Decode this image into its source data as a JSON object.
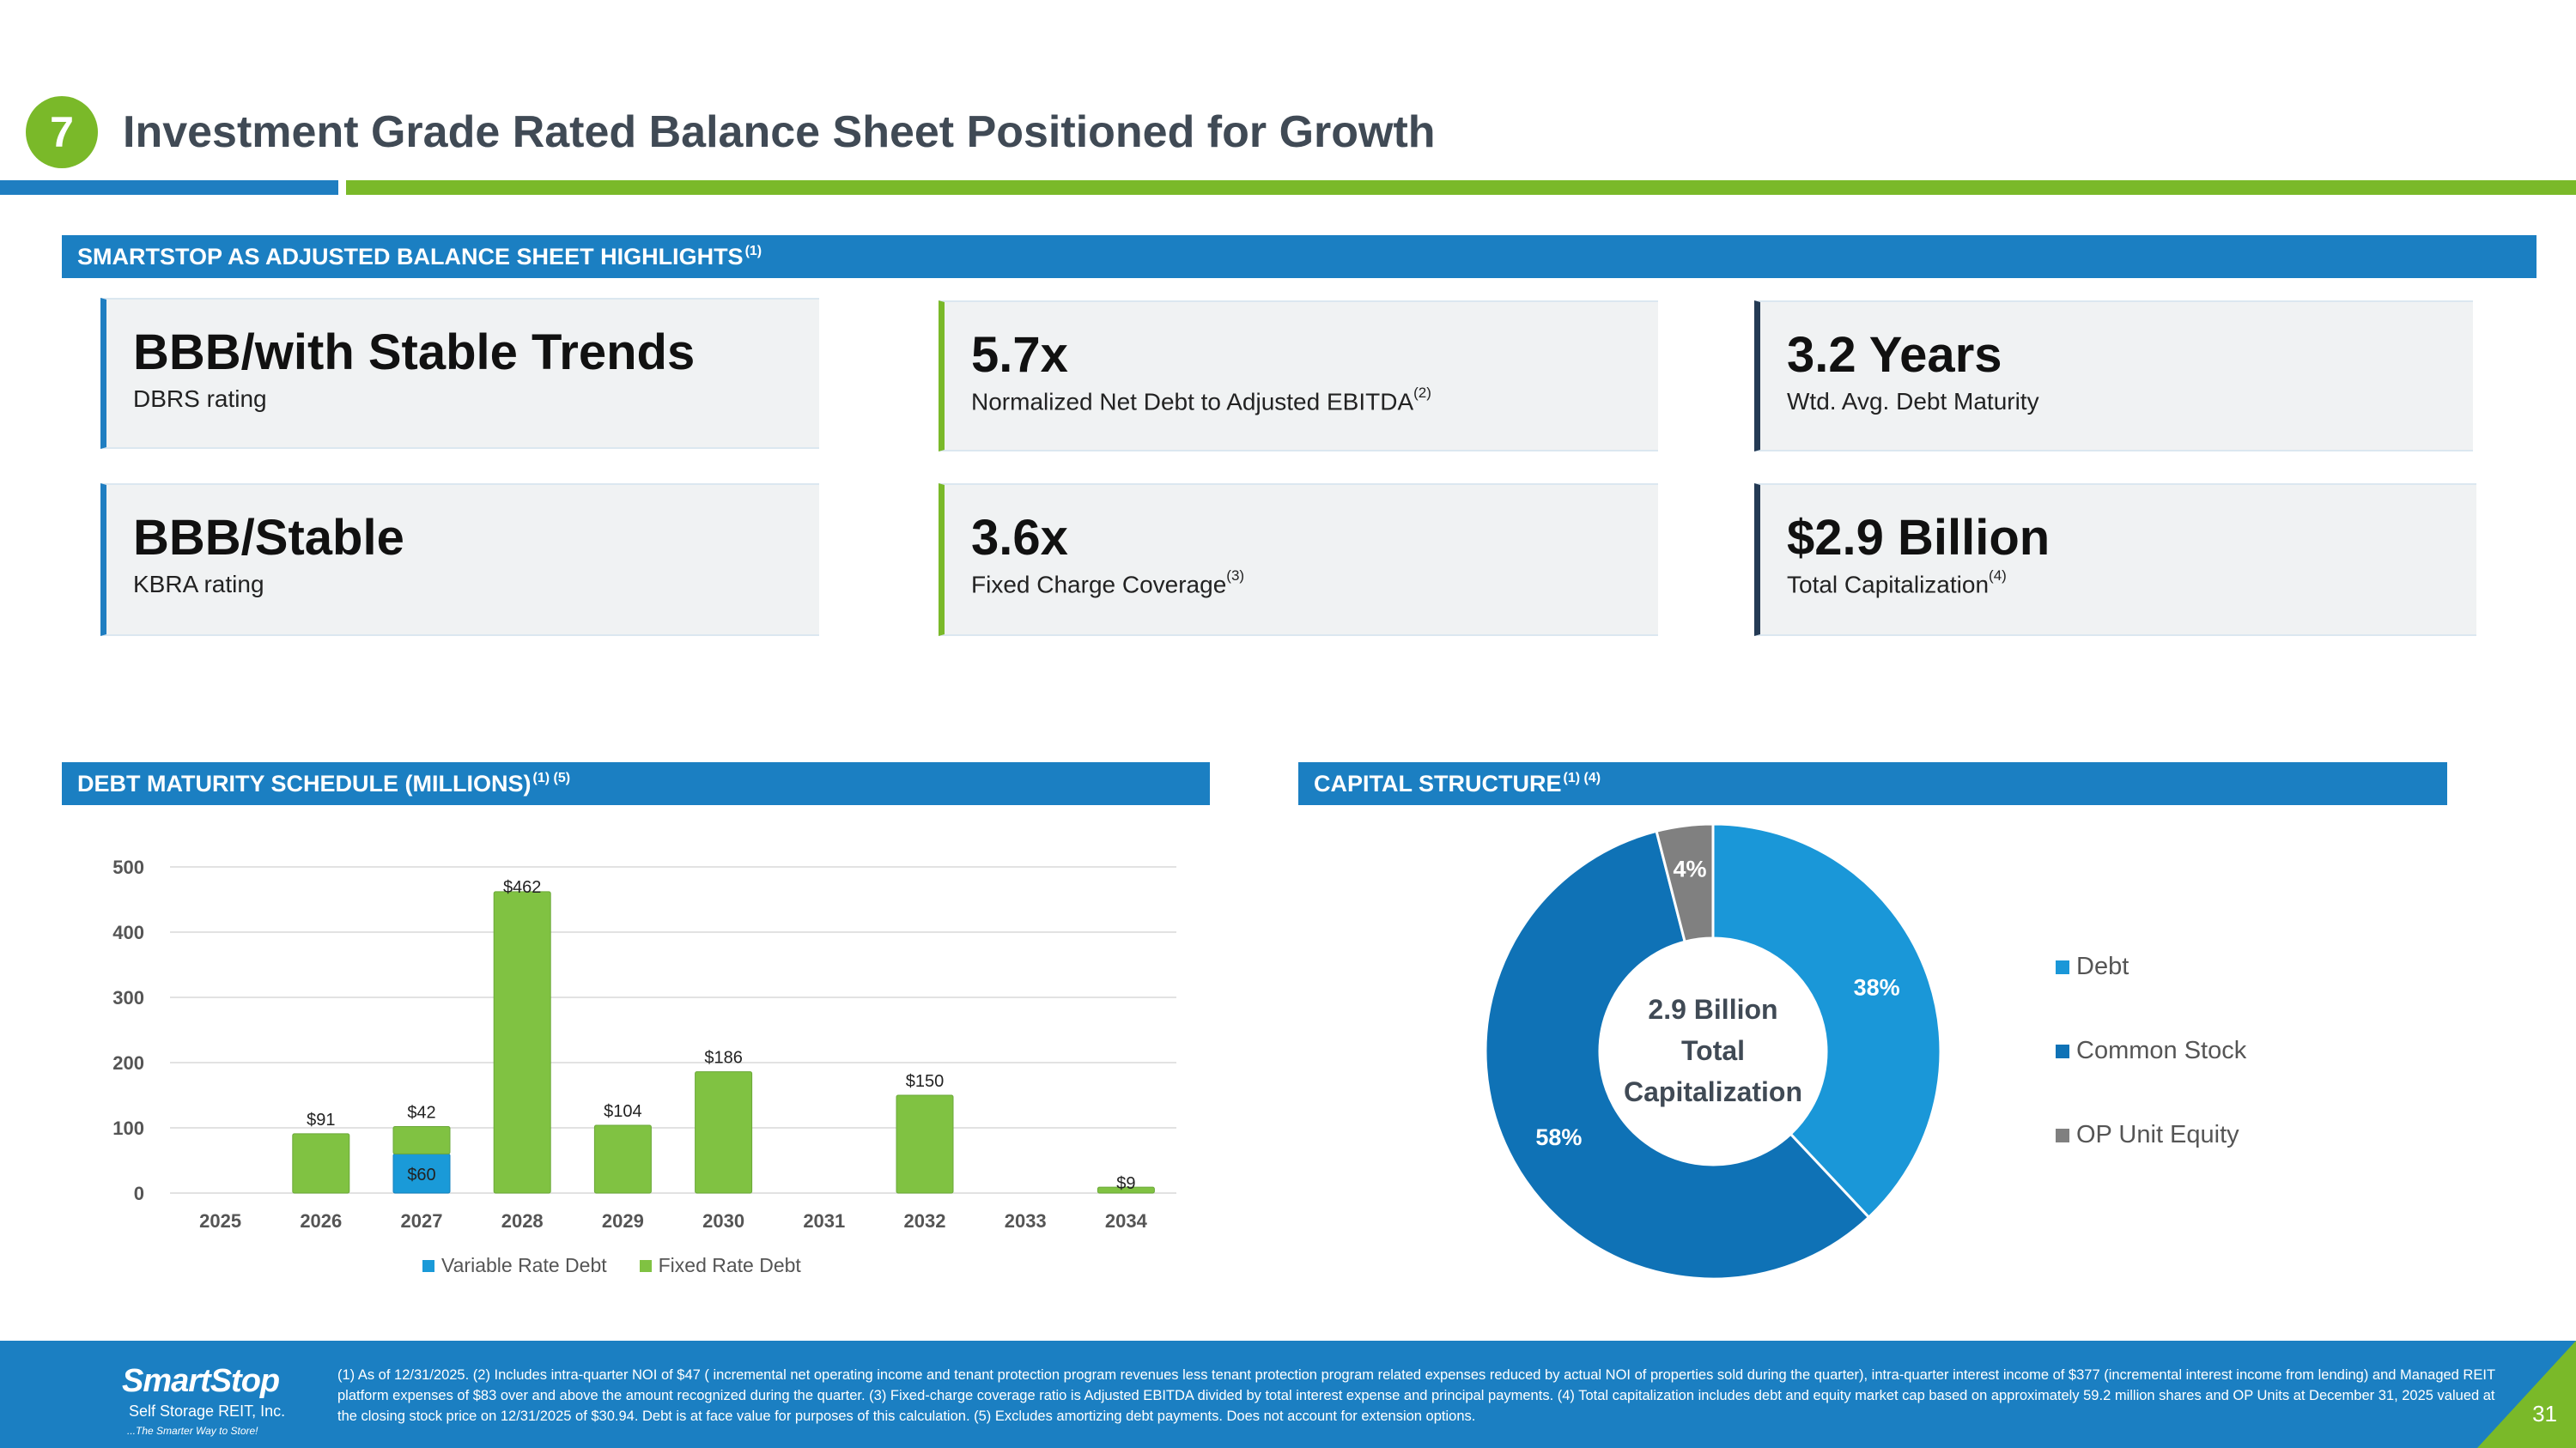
{
  "header": {
    "number": "7",
    "title": "Investment Grade Rated Balance Sheet Positioned for Growth"
  },
  "highlights": {
    "title": "SMARTSTOP AS ADJUSTED BALANCE SHEET HIGHLIGHTS",
    "title_note": "(1)",
    "cards": [
      {
        "value": "BBB/with Stable Trends",
        "label": "DBRS rating",
        "note": ""
      },
      {
        "value": "5.7x",
        "label": "Normalized Net Debt to Adjusted EBITDA",
        "note": "(2)"
      },
      {
        "value": "3.2 Years",
        "label": "Wtd. Avg. Debt Maturity",
        "note": ""
      },
      {
        "value": "BBB/Stable",
        "label": "KBRA rating",
        "note": ""
      },
      {
        "value": "3.6x",
        "label": "Fixed Charge Coverage",
        "note": "(3)"
      },
      {
        "value": "$2.9 Billion",
        "label": "Total Capitalization",
        "note": "(4)"
      }
    ]
  },
  "debt_section": {
    "title": "DEBT MATURITY SCHEDULE (MILLIONS)",
    "note": "(1) (5)"
  },
  "capital_section": {
    "title": "CAPITAL STRUCTURE",
    "note": "(1) (4)"
  },
  "colors": {
    "blue": "#1b7fc2",
    "green": "#7ab929",
    "variable": "#1a9ad8",
    "fixed": "#80c242",
    "debt": "#1a97d8",
    "common": "#0f72b6",
    "op": "#808080"
  },
  "chart_data": [
    {
      "type": "bar",
      "stacked": true,
      "categories": [
        "2025",
        "2026",
        "2027",
        "2028",
        "2029",
        "2030",
        "2031",
        "2032",
        "2033",
        "2034"
      ],
      "series": [
        {
          "name": "Variable Rate Debt",
          "values": [
            0,
            0,
            60,
            0,
            0,
            0,
            0,
            0,
            0,
            0
          ],
          "labels": [
            "",
            "",
            "$60",
            "",
            "",
            "",
            "",
            "",
            "",
            ""
          ]
        },
        {
          "name": "Fixed Rate Debt",
          "values": [
            0,
            91,
            42,
            462,
            104,
            186,
            0,
            150,
            0,
            9
          ],
          "labels": [
            "",
            "$91",
            "$42",
            "$462",
            "$104",
            "$186",
            "",
            "$150",
            "",
            "$9"
          ]
        }
      ],
      "yticks": [
        "0",
        "100",
        "200",
        "300",
        "400",
        "500"
      ],
      "ylim": [
        0,
        500
      ],
      "grid": true,
      "legend": "bottom"
    },
    {
      "type": "pie",
      "donut": true,
      "center_lines": [
        "2.9 Billion",
        "Total",
        "Capitalization"
      ],
      "slices": [
        {
          "name": "Debt",
          "value": 38,
          "label": "38%"
        },
        {
          "name": "Common Stock",
          "value": 58,
          "label": "58%"
        },
        {
          "name": "OP Unit Equity",
          "value": 4,
          "label": "4%"
        }
      ],
      "legend": "right"
    }
  ],
  "footer": {
    "logo_name": "SmartStop",
    "logo_sub": "Self Storage REIT, Inc.",
    "logo_tag": "...The Smarter Way to Store!",
    "footnote": "(1) As of 12/31/2025. (2) Includes intra-quarter NOI of $47 ( incremental net operating income and tenant protection program revenues less tenant protection program related expenses reduced by actual NOI of properties sold during the quarter), intra-quarter interest income of $377 (incremental interest income from lending) and Managed REIT platform expenses of $83 over and above the amount recognized during the quarter. (3) Fixed-charge coverage ratio is Adjusted EBITDA divided by total interest expense and principal payments. (4) Total capitalization includes debt and equity market cap based on approximately 59.2 million shares and OP Units at December 31, 2025 valued at the closing stock price on 12/31/2025 of $30.94. Debt is at face value for purposes of this calculation. (5) Excludes amortizing debt payments. Does not account for extension options.",
    "page_number": "31"
  }
}
